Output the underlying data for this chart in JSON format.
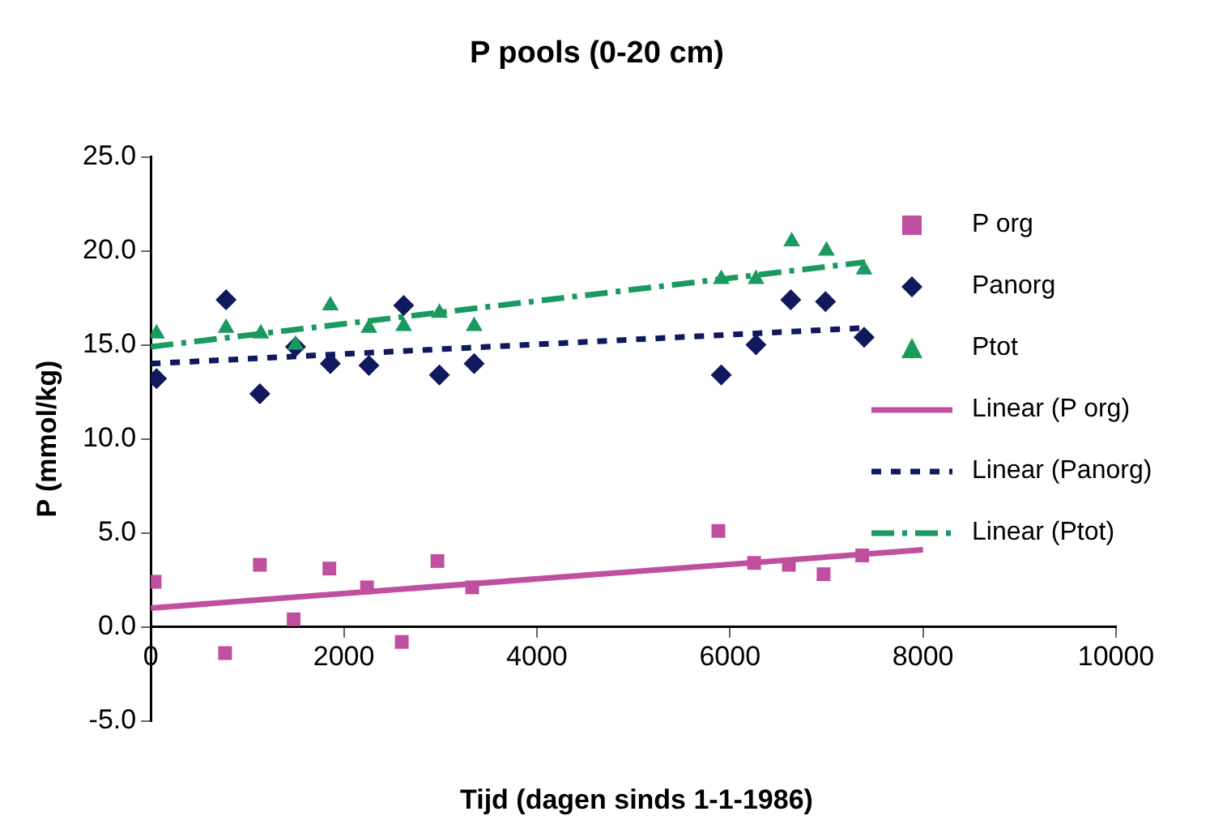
{
  "chart_data": {
    "type": "scatter",
    "title": "P pools (0-20 cm)",
    "xlabel": "Tijd (dagen sinds 1-1-1986)",
    "ylabel": "P (mmol/kg)",
    "xlim": [
      0,
      10000
    ],
    "xticks": [
      0,
      2000,
      4000,
      6000,
      8000,
      10000
    ],
    "ylim": [
      -5,
      25
    ],
    "yticks": [
      {
        "value": -5,
        "label": "-5.0"
      },
      {
        "value": 0,
        "label": "0.0"
      },
      {
        "value": 5,
        "label": "5.0"
      },
      {
        "value": 10,
        "label": "10.0"
      },
      {
        "value": 15,
        "label": "15.0"
      },
      {
        "value": 20,
        "label": "20.0"
      },
      {
        "value": 25,
        "label": "25.0"
      }
    ],
    "grid": false,
    "legend": "right",
    "series": [
      {
        "name": "P org",
        "type": "scatter",
        "marker": "square",
        "color": "#c04fa0",
        "x": [
          40,
          770,
          1130,
          1480,
          1850,
          2240,
          2600,
          2970,
          3330,
          5880,
          6250,
          6610,
          6970,
          7370
        ],
        "values": [
          2.4,
          -1.4,
          3.3,
          0.4,
          3.1,
          2.1,
          -0.8,
          3.5,
          2.1,
          5.1,
          3.4,
          3.3,
          2.8,
          3.8
        ]
      },
      {
        "name": "Panorg",
        "type": "scatter",
        "marker": "diamond",
        "color": "#10185e",
        "x": [
          60,
          780,
          1130,
          1500,
          1860,
          2260,
          2620,
          2990,
          3350,
          5910,
          6270,
          6630,
          6990,
          7390
        ],
        "values": [
          13.2,
          17.4,
          12.4,
          14.9,
          14.0,
          13.9,
          17.1,
          13.4,
          14.0,
          13.4,
          15.0,
          17.4,
          17.3,
          15.4
        ]
      },
      {
        "name": "Ptot",
        "type": "scatter",
        "marker": "triangle",
        "color": "#1a9a5e",
        "x": [
          60,
          780,
          1140,
          1500,
          1860,
          2260,
          2620,
          2990,
          3350,
          5910,
          6270,
          6640,
          7000,
          7390
        ],
        "values": [
          15.6,
          15.9,
          15.6,
          15.0,
          17.1,
          15.9,
          16.0,
          16.7,
          16.0,
          18.5,
          18.5,
          20.5,
          20.0,
          19.0
        ]
      },
      {
        "name": "Linear (P org)",
        "type": "line",
        "line_style": "solid",
        "marker": "none",
        "color": "#c04fa0",
        "x": [
          0,
          8000
        ],
        "values": [
          1.0,
          4.1
        ]
      },
      {
        "name": "Linear (Panorg)",
        "type": "line",
        "line_style": "dotted",
        "marker": "none",
        "color": "#10185e",
        "x": [
          0,
          7400
        ],
        "values": [
          14.0,
          15.9
        ]
      },
      {
        "name": "Linear (Ptot)",
        "type": "line",
        "line_style": "dashed",
        "marker": "none",
        "color": "#1a9a5e",
        "x": [
          0,
          7400
        ],
        "values": [
          14.9,
          19.4
        ]
      }
    ]
  }
}
